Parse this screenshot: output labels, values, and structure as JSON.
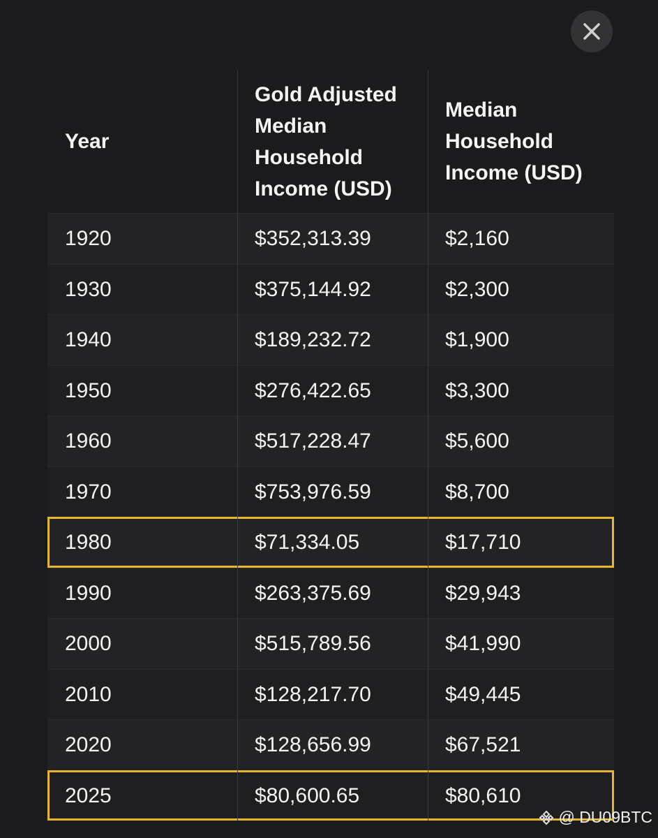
{
  "table": {
    "header": [
      "Year",
      "Gold Adjusted Median Household Income (USD)",
      "Median Household Income (USD)"
    ],
    "rows": [
      {
        "cells": [
          "1920",
          "$352,313.39",
          "$2,160"
        ],
        "highlighted": false
      },
      {
        "cells": [
          "1930",
          "$375,144.92",
          "$2,300"
        ],
        "highlighted": false
      },
      {
        "cells": [
          "1940",
          "$189,232.72",
          "$1,900"
        ],
        "highlighted": false
      },
      {
        "cells": [
          "1950",
          "$276,422.65",
          "$3,300"
        ],
        "highlighted": false
      },
      {
        "cells": [
          "1960",
          "$517,228.47",
          "$5,600"
        ],
        "highlighted": false
      },
      {
        "cells": [
          "1970",
          "$753,976.59",
          "$8,700"
        ],
        "highlighted": false
      },
      {
        "cells": [
          "1980",
          "$71,334.05",
          "$17,710"
        ],
        "highlighted": true
      },
      {
        "cells": [
          "1990",
          "$263,375.69",
          "$29,943"
        ],
        "highlighted": false
      },
      {
        "cells": [
          "2000",
          "$515,789.56",
          "$41,990"
        ],
        "highlighted": false
      },
      {
        "cells": [
          "2010",
          "$128,217.70",
          "$49,445"
        ],
        "highlighted": false
      },
      {
        "cells": [
          "2020",
          "$128,656.99",
          "$67,521"
        ],
        "highlighted": false
      },
      {
        "cells": [
          "2025",
          "$80,600.65",
          "$80,610"
        ],
        "highlighted": true
      }
    ]
  },
  "watermark": "@ DU09BTC"
}
